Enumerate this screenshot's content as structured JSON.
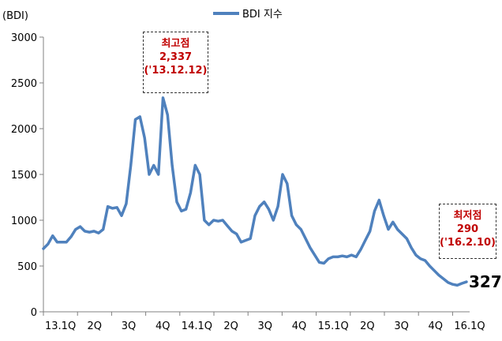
{
  "chart_data": {
    "type": "line",
    "series": [
      {
        "name": "BDI 지수",
        "color": "#4f81bd"
      }
    ],
    "ylabel": "(BDI)",
    "ylim": [
      0,
      3000
    ],
    "yticks": [
      0,
      500,
      1000,
      1500,
      2000,
      2500,
      3000
    ],
    "xtick_labels": [
      "13.1Q",
      "2Q",
      "3Q",
      "4Q",
      "14.1Q",
      "2Q",
      "3Q",
      "4Q",
      "15.1Q",
      "2Q",
      "3Q",
      "4Q",
      "16.1Q"
    ],
    "x_start": "13.1Q",
    "x_end": "16.1Q",
    "x_tick_count": 13,
    "values": [
      690,
      740,
      830,
      760,
      760,
      760,
      820,
      900,
      930,
      880,
      870,
      880,
      860,
      900,
      1150,
      1130,
      1140,
      1050,
      1180,
      1600,
      2100,
      2130,
      1900,
      1500,
      1600,
      1500,
      2337,
      2150,
      1600,
      1200,
      1100,
      1120,
      1300,
      1600,
      1500,
      1000,
      950,
      1000,
      990,
      1000,
      940,
      880,
      850,
      760,
      780,
      800,
      1050,
      1150,
      1200,
      1120,
      1000,
      1150,
      1500,
      1400,
      1050,
      950,
      900,
      800,
      700,
      620,
      540,
      530,
      580,
      600,
      600,
      610,
      600,
      620,
      600,
      680,
      780,
      880,
      1100,
      1220,
      1050,
      900,
      980,
      900,
      850,
      800,
      700,
      620,
      580,
      560,
      500,
      450,
      400,
      360,
      320,
      300,
      290,
      310,
      327
    ],
    "grid": false,
    "legend": "top-center",
    "annotations": [
      {
        "label": "최고점",
        "value": "2,337",
        "date": "('13.12.12)"
      },
      {
        "label": "최저점",
        "value": "290",
        "date": "('16.2.10)"
      }
    ],
    "last_value": "327"
  }
}
